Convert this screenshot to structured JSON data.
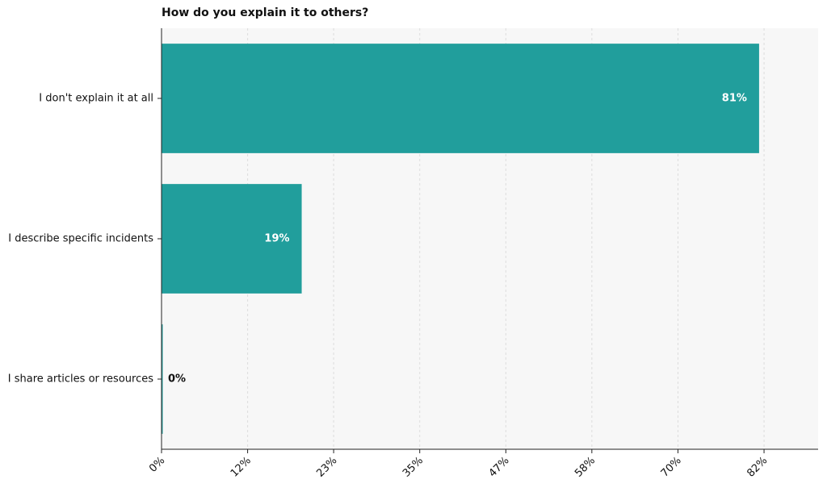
{
  "chart_data": {
    "type": "hbar",
    "title": "How do you explain it to others?",
    "categories": [
      "I don't explain it at all",
      "I describe specific incidents",
      "I share articles or resources"
    ],
    "values": [
      81,
      19,
      0
    ],
    "value_labels": [
      "81%",
      "19%",
      "0%"
    ],
    "color": "#219e9c",
    "xlim": [
      0,
      89
    ],
    "xticks": [
      {
        "value": 0,
        "label": "0%"
      },
      {
        "value": 11.67,
        "label": "12%"
      },
      {
        "value": 23.33,
        "label": "23%"
      },
      {
        "value": 35,
        "label": "35%"
      },
      {
        "value": 46.67,
        "label": "47%"
      },
      {
        "value": 58.33,
        "label": "58%"
      },
      {
        "value": 70,
        "label": "70%"
      },
      {
        "value": 81.67,
        "label": "82%"
      }
    ],
    "grid": true
  }
}
